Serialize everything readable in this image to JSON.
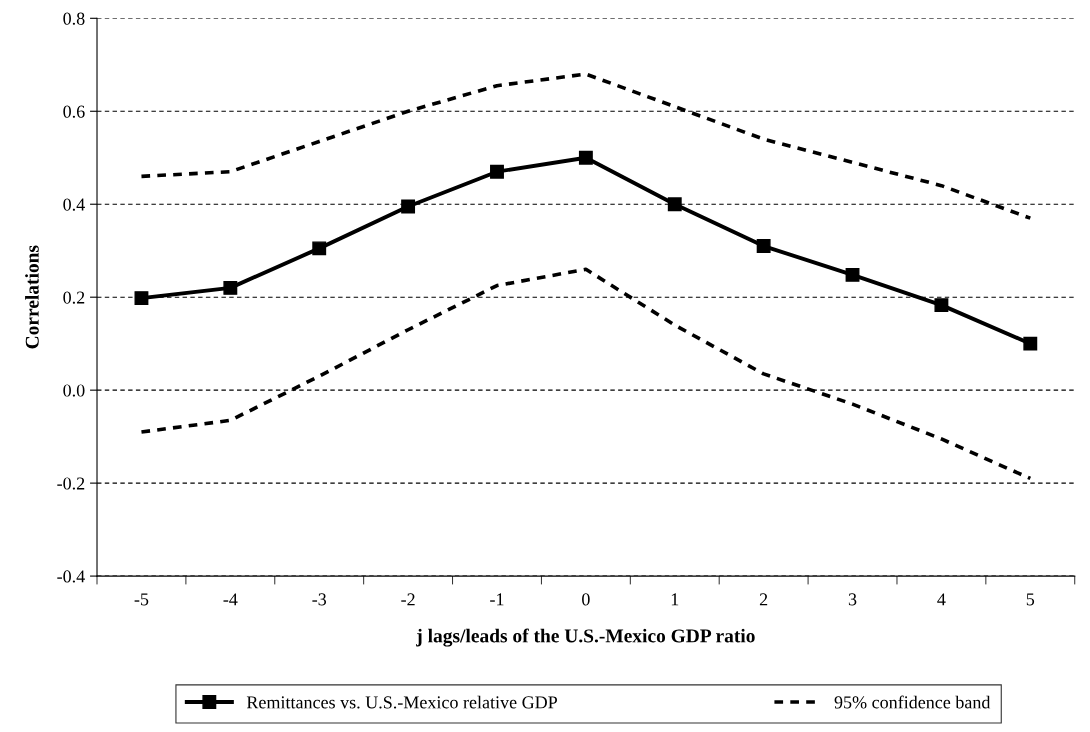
{
  "chart_data": {
    "type": "line",
    "xlabel": "j lags/leads of the U.S.-Mexico GDP ratio",
    "ylabel": "Correlations",
    "categories": [
      "-5",
      "-4",
      "-3",
      "-2",
      "-1",
      "0",
      "1",
      "2",
      "3",
      "4",
      "5"
    ],
    "series": [
      {
        "name": "Remittances vs. U.S.-Mexico relative GDP",
        "color": "#000000",
        "marker": "square",
        "line_style": "solid",
        "values": [
          0.198,
          0.22,
          0.305,
          0.395,
          0.47,
          0.5,
          0.4,
          0.31,
          0.248,
          0.183,
          0.1
        ]
      },
      {
        "name": "95% confidence band",
        "color": "#000000",
        "marker": "none",
        "line_style": "dashed",
        "values": [
          0.46,
          0.47,
          0.535,
          0.6,
          0.655,
          0.68,
          0.61,
          0.54,
          0.49,
          0.44,
          0.37
        ]
      },
      {
        "color": "#000000",
        "marker": "none",
        "line_style": "dashed",
        "values": [
          -0.09,
          -0.065,
          0.03,
          0.13,
          0.225,
          0.26,
          0.14,
          0.035,
          -0.03,
          -0.105,
          -0.19
        ]
      }
    ],
    "ylim": [
      -0.4,
      0.8
    ],
    "yticks": [
      {
        "value": -0.4,
        "label": "-0.4"
      },
      {
        "value": -0.2,
        "label": "-0.2"
      },
      {
        "value": 0,
        "label": "0.0"
      },
      {
        "value": 0.2,
        "label": "0.2"
      },
      {
        "value": 0.4,
        "label": "0.4"
      },
      {
        "value": 0.6,
        "label": "0.6"
      },
      {
        "value": 0.8,
        "label": "0.8"
      }
    ],
    "grid": "y",
    "legend": "bottom"
  }
}
